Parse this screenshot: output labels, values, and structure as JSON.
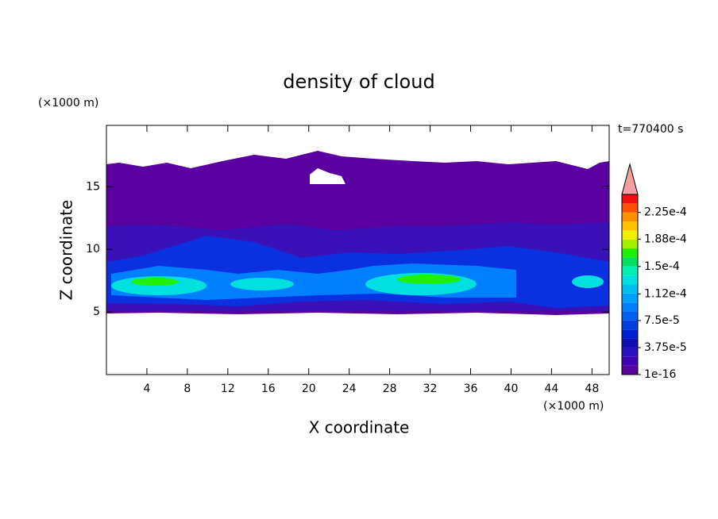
{
  "chart_data": {
    "type": "contour",
    "title": "density of cloud",
    "x_label": "X coordinate",
    "y_label": "Z coordinate",
    "x_unit": "(×1000 m)",
    "y_unit": "(×1000 m)",
    "annotation": "t=770400 s",
    "xlim": [
      0,
      49.7
    ],
    "ylim": [
      0,
      19.9
    ],
    "xticks": [
      4,
      8,
      12,
      16,
      20,
      24,
      28,
      32,
      36,
      40,
      44,
      48
    ],
    "yticks": [
      5,
      10,
      15
    ],
    "colorbar": {
      "clim": [
        1e-16,
        0.00025
      ],
      "ticks": [
        {
          "value": 1e-16,
          "label": "1e-16"
        },
        {
          "value": 3.75e-05,
          "label": "3.75e-5"
        },
        {
          "value": 7.5e-05,
          "label": "7.5e-5"
        },
        {
          "value": 0.000112,
          "label": "1.12e-4"
        },
        {
          "value": 0.00015,
          "label": "1.5e-4"
        },
        {
          "value": 0.000188,
          "label": "1.88e-4"
        },
        {
          "value": 0.000225,
          "label": "2.25e-4"
        }
      ],
      "colors": [
        "#5a00a0",
        "#4000b0",
        "#2a10c0",
        "#1010b0",
        "#0020d0",
        "#0040e0",
        "#0060f0",
        "#0080ff",
        "#00a0ff",
        "#00c0f0",
        "#00e0e0",
        "#00f0b0",
        "#00e060",
        "#20f000",
        "#a0f000",
        "#f0f000",
        "#ffc000",
        "#ff9000",
        "#ff5000",
        "#f01010"
      ],
      "extend_color": "#f4a0a0"
    }
  }
}
